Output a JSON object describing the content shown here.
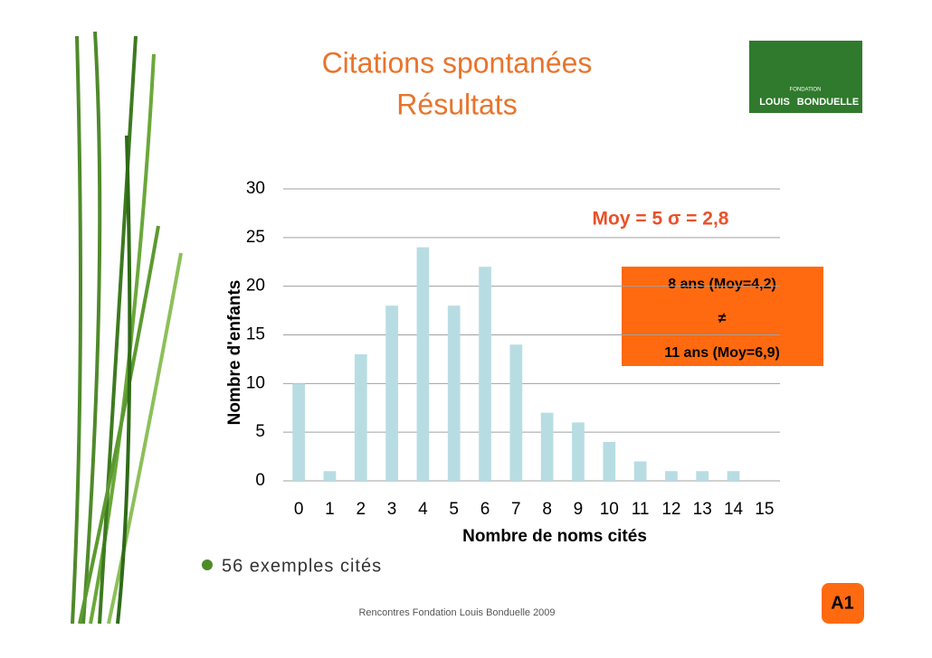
{
  "chart_data": {
    "type": "bar",
    "title": "Citations spontanées",
    "subtitle": "Résultats",
    "x_label": "Nombre de noms cités",
    "y_label": "Nombre d'enfants",
    "categories": [
      "0",
      "1",
      "2",
      "3",
      "4",
      "5",
      "6",
      "7",
      "8",
      "9",
      "10",
      "11",
      "12",
      "13",
      "14",
      "15"
    ],
    "values": [
      10,
      1,
      13,
      18,
      24,
      18,
      22,
      14,
      7,
      6,
      4,
      2,
      1,
      1,
      1,
      0
    ],
    "color": "#b7dde3",
    "ylim": [
      0,
      30
    ],
    "yticks": [
      0,
      5,
      10,
      15,
      20,
      25,
      30
    ],
    "grid": true,
    "annotations": [
      "Moy = 5  σ = 2,8",
      "8 ans (Moy=4,2)",
      "≠",
      "11 ans (Moy=6,9)"
    ]
  },
  "slide": {
    "bullet": "56 exemples cités",
    "footer": "Rencontres Fondation Louis Bonduelle 2009",
    "badge": "A1",
    "logo": [
      "FONDATION",
      "LOUIS",
      "BONDUELLE"
    ]
  }
}
